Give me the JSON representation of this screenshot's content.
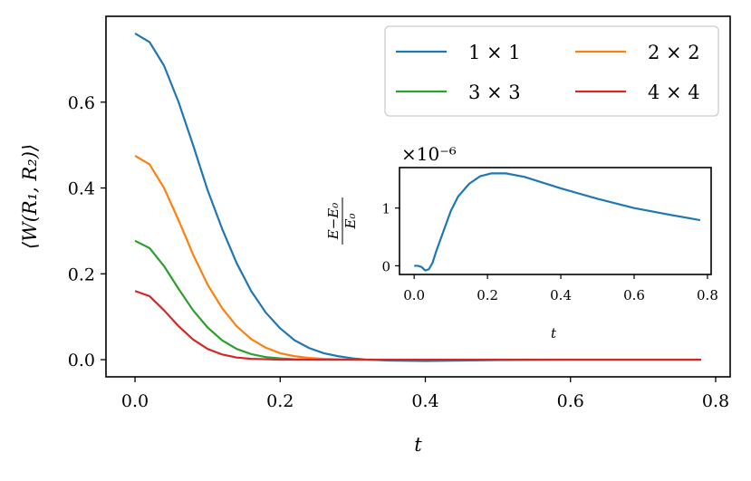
{
  "chart_data": [
    {
      "type": "line",
      "title": "",
      "xlabel": "t",
      "ylabel": "⟨W(R₁, R₂)⟩",
      "xlim": [
        -0.04,
        0.82
      ],
      "ylim": [
        -0.04,
        0.8
      ],
      "x_ticks": [
        "0.0",
        "0.2",
        "0.4",
        "0.6",
        "0.8"
      ],
      "y_ticks": [
        "0.0",
        "0.2",
        "0.4",
        "0.6"
      ],
      "legend": {
        "position": "upper-right",
        "columns": 2
      },
      "grid": false,
      "series": [
        {
          "name": "1 × 1",
          "color": "#1f77b4",
          "x": [
            0.0,
            0.02,
            0.04,
            0.06,
            0.08,
            0.1,
            0.12,
            0.14,
            0.16,
            0.18,
            0.2,
            0.22,
            0.24,
            0.26,
            0.28,
            0.3,
            0.32,
            0.35,
            0.4,
            0.45,
            0.5,
            0.6,
            0.7,
            0.78
          ],
          "y": [
            0.76,
            0.74,
            0.685,
            0.6,
            0.5,
            0.395,
            0.305,
            0.225,
            0.16,
            0.11,
            0.073,
            0.045,
            0.027,
            0.015,
            0.008,
            0.003,
            0.0,
            -0.002,
            -0.003,
            -0.002,
            -0.001,
            0.0,
            0.0,
            0.0
          ]
        },
        {
          "name": "2 × 2",
          "color": "#ff7f0e",
          "x": [
            0.0,
            0.02,
            0.04,
            0.06,
            0.08,
            0.1,
            0.12,
            0.14,
            0.16,
            0.18,
            0.2,
            0.22,
            0.24,
            0.26,
            0.28,
            0.3,
            0.35,
            0.4,
            0.5,
            0.6,
            0.7,
            0.78
          ],
          "y": [
            0.475,
            0.455,
            0.4,
            0.325,
            0.245,
            0.175,
            0.12,
            0.078,
            0.048,
            0.028,
            0.015,
            0.008,
            0.004,
            0.002,
            0.001,
            0.0,
            0.0,
            0.0,
            0.0,
            0.0,
            0.0,
            0.0
          ]
        },
        {
          "name": "3 × 3",
          "color": "#2ca02c",
          "x": [
            0.0,
            0.02,
            0.04,
            0.06,
            0.08,
            0.1,
            0.12,
            0.14,
            0.16,
            0.18,
            0.2,
            0.22,
            0.24,
            0.26,
            0.3,
            0.35,
            0.4,
            0.5,
            0.6,
            0.7,
            0.78
          ],
          "y": [
            0.277,
            0.26,
            0.218,
            0.165,
            0.115,
            0.075,
            0.045,
            0.025,
            0.013,
            0.006,
            0.003,
            0.001,
            0.0,
            0.0,
            0.0,
            0.0,
            0.0,
            0.0,
            0.0,
            0.0,
            0.0
          ]
        },
        {
          "name": "4 × 4",
          "color": "#d62728",
          "x": [
            0.0,
            0.02,
            0.04,
            0.06,
            0.08,
            0.1,
            0.12,
            0.14,
            0.16,
            0.18,
            0.2,
            0.22,
            0.26,
            0.3,
            0.35,
            0.4,
            0.5,
            0.6,
            0.7,
            0.78
          ],
          "y": [
            0.16,
            0.148,
            0.115,
            0.078,
            0.047,
            0.025,
            0.012,
            0.005,
            0.002,
            0.001,
            0.0,
            0.0,
            0.0,
            0.0,
            0.0,
            0.0,
            0.0,
            0.0,
            0.0,
            0.0
          ]
        }
      ]
    },
    {
      "type": "line",
      "title": "",
      "xlabel": "t",
      "ylabel": "E−E₀ / E₀",
      "y_offset_text": "×10⁻⁶",
      "xlim": [
        -0.04,
        0.81
      ],
      "ylim": [
        -0.15,
        1.7
      ],
      "x_ticks": [
        "0.0",
        "0.2",
        "0.4",
        "0.6",
        "0.8"
      ],
      "y_ticks": [
        "0",
        "1"
      ],
      "grid": false,
      "series": [
        {
          "color": "#1f77b4",
          "x": [
            0.0,
            0.01,
            0.02,
            0.03,
            0.04,
            0.05,
            0.06,
            0.08,
            0.1,
            0.12,
            0.15,
            0.18,
            0.21,
            0.25,
            0.3,
            0.35,
            0.4,
            0.5,
            0.6,
            0.7,
            0.78
          ],
          "y": [
            0.0,
            0.0,
            -0.02,
            -0.08,
            -0.06,
            0.05,
            0.25,
            0.6,
            0.95,
            1.2,
            1.42,
            1.55,
            1.6,
            1.6,
            1.54,
            1.44,
            1.34,
            1.16,
            1.0,
            0.88,
            0.79
          ]
        }
      ]
    }
  ]
}
